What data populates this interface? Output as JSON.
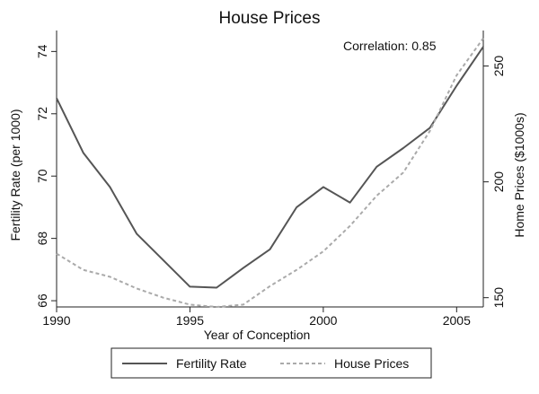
{
  "chart_data": {
    "type": "line",
    "title": "House Prices",
    "xlabel": "Year of Conception",
    "ylabel_left": "Fertility Rate (per 1000)",
    "ylabel_right": "Home Prices ($1000s)",
    "annotation": "Correlation: 0.85",
    "xlim": [
      1990,
      2006
    ],
    "ylim_left": [
      65.8,
      74.5
    ],
    "ylim_right": [
      146,
      263
    ],
    "x_ticks": [
      1990,
      1995,
      2000,
      2005
    ],
    "y_left_ticks": [
      66,
      68,
      70,
      72,
      74
    ],
    "y_right_ticks": [
      150,
      200,
      250
    ],
    "grid": false,
    "legend_position": "bottom",
    "x": [
      1990,
      1991,
      1992,
      1993,
      1994,
      1995,
      1996,
      1997,
      1998,
      1999,
      2000,
      2001,
      2002,
      2003,
      2004,
      2005,
      2006
    ],
    "series": [
      {
        "name": "Fertility Rate",
        "axis": "left",
        "color": "#555555",
        "style": "solid",
        "values": [
          72.5,
          70.75,
          69.65,
          68.15,
          67.3,
          66.45,
          66.42,
          67.05,
          67.65,
          69.0,
          69.65,
          69.15,
          70.3,
          70.9,
          71.55,
          72.9,
          74.15
        ]
      },
      {
        "name": "House Prices",
        "axis": "right",
        "color": "#aaaaaa",
        "style": "dashed",
        "values": [
          169,
          162,
          159,
          154,
          150,
          147,
          146,
          147,
          155,
          162,
          170,
          181,
          194,
          204,
          222,
          246,
          262
        ]
      }
    ]
  }
}
